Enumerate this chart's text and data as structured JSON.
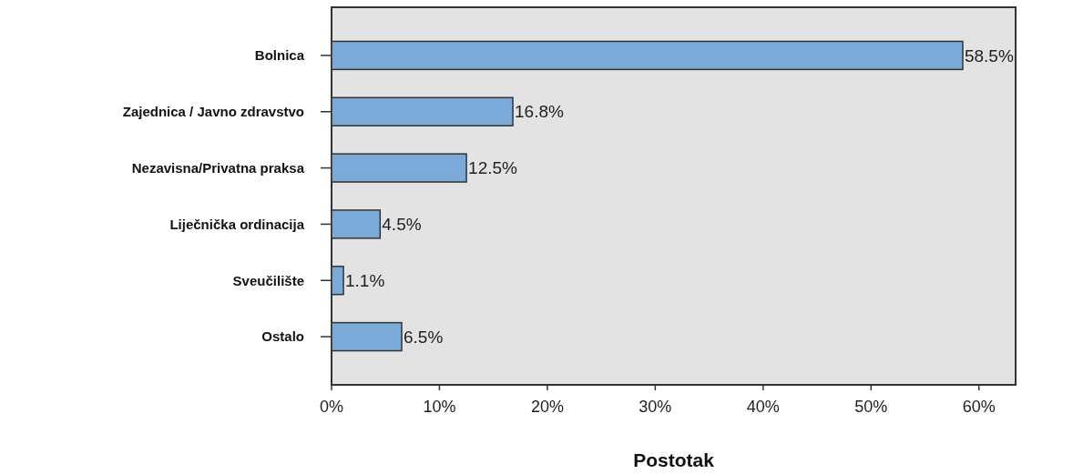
{
  "chart_data": {
    "type": "bar",
    "orientation": "horizontal",
    "xlabel": "Postotak",
    "categories": [
      "Bolnica",
      "Zajednica / Javno zdravstvo",
      "Nezavisna/Privatna praksa",
      "Liječnička ordinacija",
      "Sveučilište",
      "Ostalo"
    ],
    "values": [
      58.5,
      16.8,
      12.5,
      4.5,
      1.1,
      6.5
    ],
    "value_labels": [
      "58.5%",
      "16.8%",
      "12.5%",
      "4.5%",
      "1.1%",
      "6.5%"
    ],
    "color": "#7ba9d8",
    "xlim": [
      0,
      63.4
    ],
    "xticks": [
      {
        "value": 0,
        "label": "0%"
      },
      {
        "value": 10,
        "label": "10%"
      },
      {
        "value": 20,
        "label": "20%"
      },
      {
        "value": 30,
        "label": "30%"
      },
      {
        "value": 40,
        "label": "40%"
      },
      {
        "value": 50,
        "label": "50%"
      },
      {
        "value": 60,
        "label": "60%"
      }
    ],
    "grid": false
  }
}
